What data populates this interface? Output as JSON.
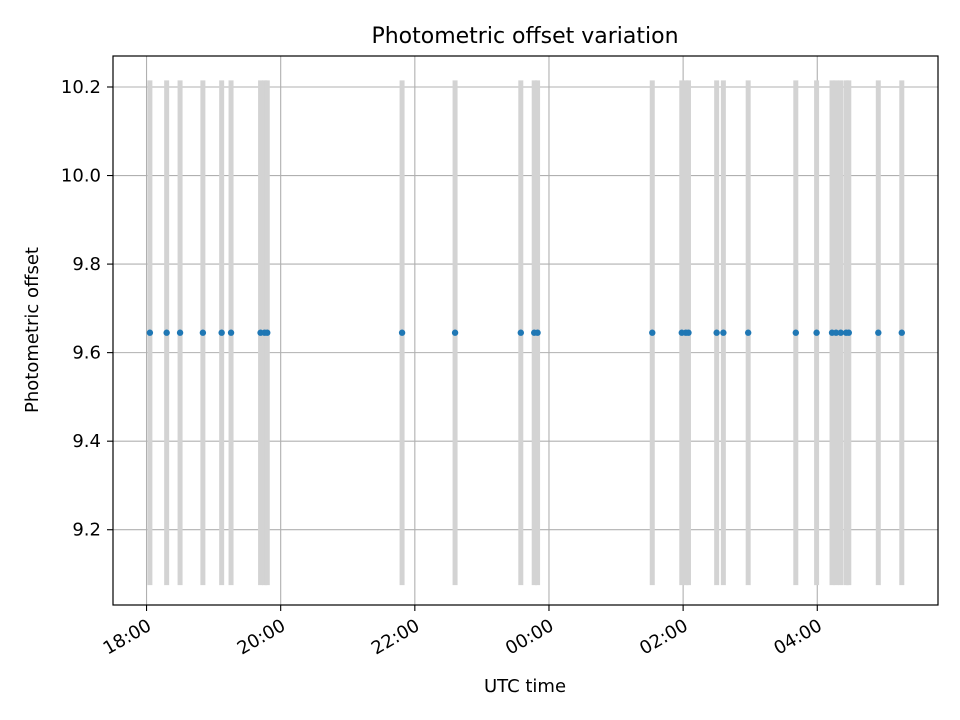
{
  "chart_data": {
    "type": "scatter",
    "title": "Photometric offset variation",
    "xlabel": "UTC time",
    "ylabel": "Photometric offset",
    "x_unit": "hours since 18:00 UTC",
    "xlim": [
      -0.5,
      11.8
    ],
    "ylim": [
      9.03,
      10.27
    ],
    "grid": true,
    "x_ticks": [
      {
        "value": 0,
        "label": "18:00"
      },
      {
        "value": 2,
        "label": "20:00"
      },
      {
        "value": 4,
        "label": "22:00"
      },
      {
        "value": 6,
        "label": "00:00"
      },
      {
        "value": 8,
        "label": "02:00"
      },
      {
        "value": 10,
        "label": "04:00"
      }
    ],
    "y_ticks": [
      {
        "value": 9.2,
        "label": "9.2"
      },
      {
        "value": 9.4,
        "label": "9.4"
      },
      {
        "value": 9.6,
        "label": "9.6"
      },
      {
        "value": 9.8,
        "label": "9.8"
      },
      {
        "value": 10.0,
        "label": "10.0"
      },
      {
        "value": 10.2,
        "label": "10.2"
      }
    ],
    "series": [
      {
        "name": "Photometric offset",
        "color": "#1f77b4",
        "x": [
          0.05,
          0.3,
          0.5,
          0.84,
          1.12,
          1.26,
          1.7,
          1.76,
          1.8,
          3.81,
          4.6,
          5.58,
          5.78,
          5.83,
          7.54,
          7.98,
          8.04,
          8.08,
          8.5,
          8.6,
          8.97,
          9.68,
          9.99,
          10.22,
          10.28,
          10.35,
          10.43,
          10.47,
          10.91,
          11.26
        ],
        "y": [
          9.645,
          9.645,
          9.645,
          9.645,
          9.645,
          9.645,
          9.645,
          9.645,
          9.645,
          9.645,
          9.645,
          9.645,
          9.645,
          9.645,
          9.645,
          9.645,
          9.645,
          9.645,
          9.645,
          9.645,
          9.645,
          9.645,
          9.645,
          9.645,
          9.645,
          9.645,
          9.645,
          9.645,
          9.645,
          9.645
        ],
        "error_low": 9.075,
        "error_high": 10.215,
        "error_color": "#d3d3d3"
      }
    ]
  }
}
